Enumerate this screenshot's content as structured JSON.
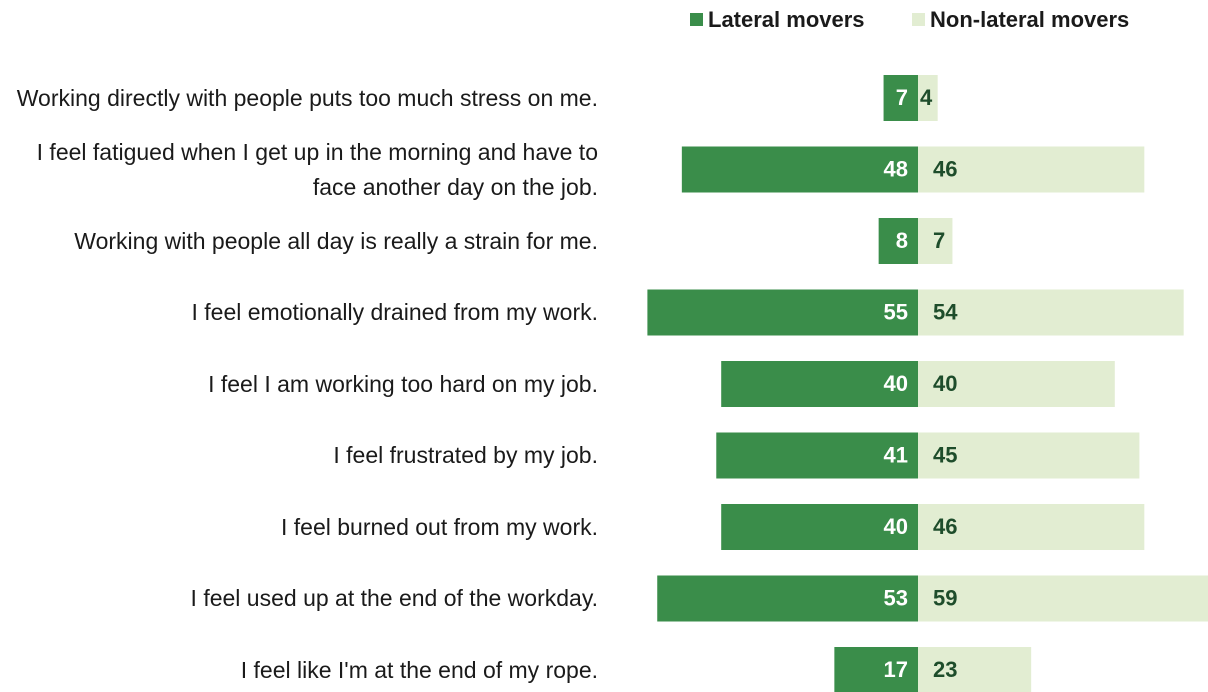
{
  "chart_data": {
    "type": "bar",
    "categories": [
      "Working directly with people puts too much stress on me.",
      "I feel fatigued when I get up in the morning and have to face another day on the job.",
      "Working with people all day is really a strain for me.",
      "I feel emotionally drained from my work.",
      "I feel I am working too hard on my job.",
      "I feel frustrated by my job.",
      "I feel burned out from my work.",
      "I feel used up at the end of the workday.",
      "I feel like I'm at the end of my rope."
    ],
    "series": [
      {
        "name": "Lateral movers",
        "color": "#3a8d4a",
        "values": [
          7,
          48,
          8,
          55,
          40,
          41,
          40,
          53,
          17
        ]
      },
      {
        "name": "Non-lateral movers",
        "color": "#e2edd2",
        "values": [
          4,
          46,
          7,
          54,
          40,
          45,
          46,
          59,
          23
        ]
      }
    ],
    "legend": "top-right"
  }
}
